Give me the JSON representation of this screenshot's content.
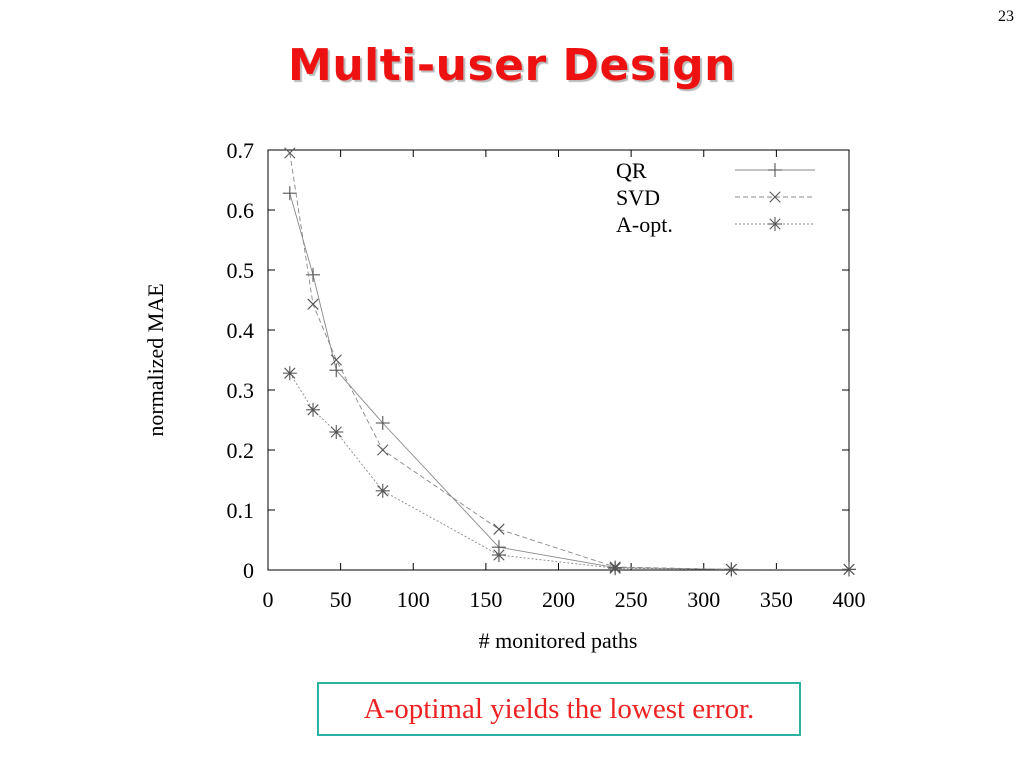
{
  "slide": {
    "number": "23",
    "title": "Multi-user Design",
    "callout": "A-optimal yields the lowest error."
  },
  "chart_data": {
    "type": "line",
    "title": "",
    "xlabel": "# monitored paths",
    "ylabel": "normalized MAE",
    "xlim": [
      0,
      400
    ],
    "ylim": [
      0,
      0.7
    ],
    "xticks": [
      "0",
      "50",
      "100",
      "150",
      "200",
      "250",
      "300",
      "350",
      "400"
    ],
    "yticks": [
      "0",
      "0.1",
      "0.2",
      "0.3",
      "0.4",
      "0.5",
      "0.6",
      "0.7"
    ],
    "grid": false,
    "legend_position": "top-right",
    "x": [
      15,
      31,
      47,
      79,
      159,
      239,
      319,
      400
    ],
    "series": [
      {
        "name": "QR",
        "marker": "plus",
        "linestyle": "solid",
        "color": "#888888",
        "values": [
          0.628,
          0.492,
          0.333,
          0.245,
          0.038,
          0.004,
          0.001,
          0.001
        ]
      },
      {
        "name": "SVD",
        "marker": "cross",
        "linestyle": "dashed",
        "color": "#888888",
        "values": [
          0.695,
          0.443,
          0.35,
          0.2,
          0.068,
          0.005,
          0.001,
          0.001
        ]
      },
      {
        "name": "A-opt.",
        "marker": "asterisk",
        "linestyle": "dotted",
        "color": "#888888",
        "values": [
          0.328,
          0.267,
          0.23,
          0.132,
          0.025,
          0.003,
          0.001,
          0.001
        ]
      }
    ]
  }
}
